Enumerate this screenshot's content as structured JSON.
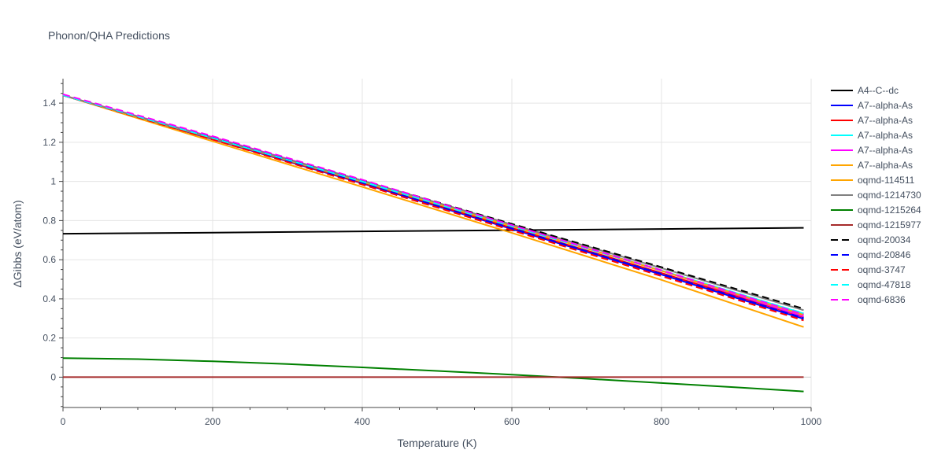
{
  "chart_data": {
    "type": "line",
    "title": "Phonon/QHA Predictions",
    "xlabel": "Temperature (K)",
    "ylabel": "ΔGibbs (eV/atom)",
    "xlim": [
      0,
      1000
    ],
    "ylim": [
      -0.155,
      1.525
    ],
    "xticks": [
      0,
      200,
      400,
      600,
      800,
      1000
    ],
    "yticks": [
      0,
      0.2,
      0.4,
      0.6,
      0.8,
      1,
      1.2,
      1.4
    ],
    "ytick_labels": [
      "0",
      "0.2",
      "0.4",
      "0.6",
      "0.8",
      "1",
      "1.2",
      "1.4"
    ],
    "grid": true,
    "legend_position": "right",
    "series": [
      {
        "name": "A4--C--dc",
        "color": "#000000",
        "dash": "solid",
        "x": [
          0,
          200,
          400,
          600,
          800,
          990
        ],
        "y": [
          0.733,
          0.738,
          0.745,
          0.751,
          0.757,
          0.763
        ]
      },
      {
        "name": "A7--alpha-As",
        "color": "#0000ff",
        "dash": "solid",
        "x": [
          0,
          200,
          400,
          600,
          800,
          990
        ],
        "y": [
          1.44,
          1.215,
          0.99,
          0.757,
          0.524,
          0.298
        ]
      },
      {
        "name": "A7--alpha-As",
        "color": "#ff0000",
        "dash": "solid",
        "x": [
          0,
          200,
          400,
          600,
          800,
          990
        ],
        "y": [
          1.44,
          1.217,
          0.993,
          0.762,
          0.532,
          0.307
        ]
      },
      {
        "name": "A7--alpha-As",
        "color": "#00ffff",
        "dash": "solid",
        "x": [
          0,
          200,
          400,
          600,
          800,
          990
        ],
        "y": [
          1.44,
          1.22,
          0.999,
          0.771,
          0.545,
          0.325
        ]
      },
      {
        "name": "A7--alpha-As",
        "color": "#ff00ff",
        "dash": "solid",
        "x": [
          0,
          200,
          400,
          600,
          800,
          990
        ],
        "y": [
          1.44,
          1.226,
          1.005,
          0.773,
          0.543,
          0.31
        ]
      },
      {
        "name": "A7--alpha-As",
        "color": "#ffa500",
        "dash": "solid",
        "x": [
          0,
          200,
          400,
          600,
          800,
          990
        ],
        "y": [
          1.44,
          1.222,
          1.0,
          0.771,
          0.543,
          0.318
        ]
      },
      {
        "name": "oqmd-114511",
        "color": "#ffa500",
        "dash": "solid",
        "x": [
          0,
          200,
          400,
          600,
          800,
          990
        ],
        "y": [
          1.44,
          1.205,
          0.972,
          0.737,
          0.497,
          0.256
        ]
      },
      {
        "name": "oqmd-1214730",
        "color": "#808080",
        "dash": "solid",
        "x": [
          0,
          200,
          400,
          600,
          800,
          990
        ],
        "y": [
          1.44,
          1.222,
          1.004,
          0.78,
          0.557,
          0.342
        ]
      },
      {
        "name": "oqmd-1215264",
        "color": "#008000",
        "dash": "solid",
        "x": [
          0,
          100,
          200,
          300,
          400,
          500,
          600,
          700,
          800,
          900,
          990
        ],
        "y": [
          0.097,
          0.092,
          0.081,
          0.067,
          0.05,
          0.032,
          0.013,
          -0.008,
          -0.03,
          -0.052,
          -0.073
        ]
      },
      {
        "name": "oqmd-1215977",
        "color": "#a52a2a",
        "dash": "solid",
        "x": [
          0,
          990
        ],
        "y": [
          0.0,
          0.0
        ]
      },
      {
        "name": "oqmd-20034",
        "color": "#000000",
        "dash": "dash",
        "x": [
          0,
          200,
          400,
          600,
          800,
          990
        ],
        "y": [
          1.44,
          1.224,
          1.006,
          0.783,
          0.562,
          0.35
        ]
      },
      {
        "name": "oqmd-20846",
        "color": "#0000ff",
        "dash": "dash",
        "x": [
          0,
          200,
          400,
          600,
          800,
          990
        ],
        "y": [
          1.44,
          1.217,
          0.99,
          0.76,
          0.528,
          0.302
        ]
      },
      {
        "name": "oqmd-3747",
        "color": "#ff0000",
        "dash": "dash",
        "x": [
          0,
          200,
          400,
          600,
          800,
          990
        ],
        "y": [
          1.44,
          1.214,
          0.984,
          0.75,
          0.516,
          0.29
        ]
      },
      {
        "name": "oqmd-47818",
        "color": "#00ffff",
        "dash": "dash",
        "x": [
          0,
          200,
          400,
          600,
          800,
          990
        ],
        "y": [
          1.44,
          1.222,
          1.0,
          0.771,
          0.545,
          0.326
        ]
      },
      {
        "name": "oqmd-6836",
        "color": "#ff00ff",
        "dash": "dash",
        "x": [
          0,
          200,
          400,
          600,
          800,
          990
        ],
        "y": [
          1.445,
          1.231,
          1.009,
          0.777,
          0.546,
          0.32
        ]
      }
    ]
  }
}
